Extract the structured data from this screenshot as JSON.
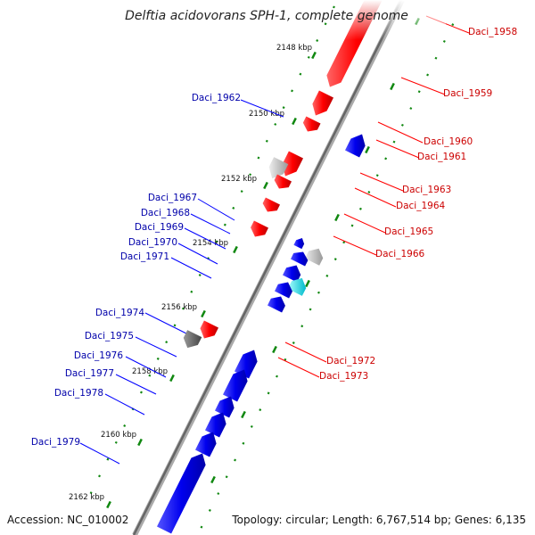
{
  "title": "Delftia acidovorans SPH-1, complete genome",
  "footer": {
    "accession": "Accession: NC_010002",
    "topology": "Topology: circular; Length: 6,767,514 bp; Genes: 6,135"
  },
  "colors": {
    "forward": "#ff0000",
    "reverse": "#0000ee",
    "forward_label": "#cc0000",
    "reverse_label": "#0000aa",
    "tick": "#118811",
    "backbone": "#888888"
  },
  "ticks": [
    "2148 kbp",
    "2150 kbp",
    "2152 kbp",
    "2154 kbp",
    "2156 kbp",
    "2158 kbp",
    "2160 kbp",
    "2162 kbp"
  ],
  "genes_forward": [
    {
      "label": "Daci_1958"
    },
    {
      "label": "Daci_1959"
    },
    {
      "label": "Daci_1960"
    },
    {
      "label": "Daci_1961"
    },
    {
      "label": "Daci_1963"
    },
    {
      "label": "Daci_1964"
    },
    {
      "label": "Daci_1965"
    },
    {
      "label": "Daci_1966"
    },
    {
      "label": "Daci_1972"
    },
    {
      "label": "Daci_1973"
    }
  ],
  "genes_reverse": [
    {
      "label": "Daci_1962"
    },
    {
      "label": "Daci_1967"
    },
    {
      "label": "Daci_1968"
    },
    {
      "label": "Daci_1969"
    },
    {
      "label": "Daci_1970"
    },
    {
      "label": "Daci_1971"
    },
    {
      "label": "Daci_1974"
    },
    {
      "label": "Daci_1975"
    },
    {
      "label": "Daci_1976"
    },
    {
      "label": "Daci_1977"
    },
    {
      "label": "Daci_1978"
    },
    {
      "label": "Daci_1979"
    }
  ]
}
